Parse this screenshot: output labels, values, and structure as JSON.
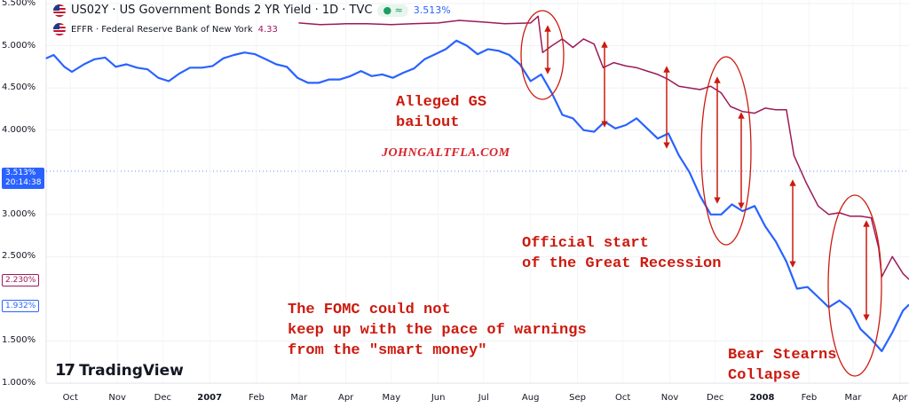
{
  "header": {
    "title": "US02Y · US Government Bonds 2 YR Yield · 1D · TVC",
    "live_value": "3.513%",
    "compare_title": "EFFR · Federal Reserve Bank of New York",
    "compare_value": "4.33"
  },
  "brand": {
    "name": "TradingView"
  },
  "watermark": "JOHNGALTFLA.COM",
  "price_tags": {
    "current_value": "3.513%",
    "current_time": "20:14:38",
    "effr_last": "2.230%",
    "us02y_last": "1.932%"
  },
  "annotations": {
    "gs_bailout": "Alleged GS\nbailout",
    "recession": "Official start\nof the Great Recession",
    "fomc": "The FOMC could not\nkeep up with the pace of warnings\nfrom the \"smart money\"",
    "bear_stearns": "Bear Stearns\nCollapse"
  },
  "colors": {
    "us02y": "#2962ff",
    "effr": "#9b1b5a",
    "annotation": "#cc1a0f"
  },
  "chart_data": {
    "type": "line",
    "title": "US02Y · US Government Bonds 2 YR Yield · 1D · TVC",
    "ylim": [
      1.0,
      5.5
    ],
    "y_ticks": [
      "5.500%",
      "5.000%",
      "4.500%",
      "4.000%",
      "3.000%",
      "2.500%",
      "1.500%",
      "1.000%"
    ],
    "y_tick_values": [
      5.5,
      5.0,
      4.5,
      4.0,
      3.0,
      2.5,
      1.5,
      1.0
    ],
    "x_range": [
      "2006-09-15",
      "2008-04-07"
    ],
    "x_ticks": [
      {
        "label": "Oct",
        "date": "2006-10-01"
      },
      {
        "label": "Nov",
        "date": "2006-11-01"
      },
      {
        "label": "Dec",
        "date": "2006-12-01"
      },
      {
        "label": "2007",
        "date": "2007-01-01"
      },
      {
        "label": "Feb",
        "date": "2007-02-01"
      },
      {
        "label": "Mar",
        "date": "2007-03-01"
      },
      {
        "label": "Apr",
        "date": "2007-04-01"
      },
      {
        "label": "May",
        "date": "2007-05-01"
      },
      {
        "label": "Jun",
        "date": "2007-06-01"
      },
      {
        "label": "Jul",
        "date": "2007-07-01"
      },
      {
        "label": "Aug",
        "date": "2007-08-01"
      },
      {
        "label": "Sep",
        "date": "2007-09-01"
      },
      {
        "label": "Oct",
        "date": "2007-10-01"
      },
      {
        "label": "Nov",
        "date": "2007-11-01"
      },
      {
        "label": "Dec",
        "date": "2007-12-01"
      },
      {
        "label": "2008",
        "date": "2008-01-01"
      },
      {
        "label": "Feb",
        "date": "2008-02-01"
      },
      {
        "label": "Mar",
        "date": "2008-03-01"
      },
      {
        "label": "Apr",
        "date": "2008-04-01"
      }
    ],
    "series": [
      {
        "name": "US02Y",
        "color": "#2962ff",
        "points": [
          [
            "2006-09-15",
            4.85
          ],
          [
            "2006-09-20",
            4.89
          ],
          [
            "2006-09-27",
            4.75
          ],
          [
            "2006-10-02",
            4.69
          ],
          [
            "2006-10-10",
            4.78
          ],
          [
            "2006-10-17",
            4.84
          ],
          [
            "2006-10-24",
            4.86
          ],
          [
            "2006-10-31",
            4.75
          ],
          [
            "2006-11-07",
            4.78
          ],
          [
            "2006-11-14",
            4.74
          ],
          [
            "2006-11-21",
            4.72
          ],
          [
            "2006-11-28",
            4.62
          ],
          [
            "2006-12-05",
            4.58
          ],
          [
            "2006-12-12",
            4.67
          ],
          [
            "2006-12-19",
            4.74
          ],
          [
            "2006-12-27",
            4.74
          ],
          [
            "2007-01-03",
            4.76
          ],
          [
            "2007-01-10",
            4.85
          ],
          [
            "2007-01-17",
            4.89
          ],
          [
            "2007-01-24",
            4.92
          ],
          [
            "2007-01-31",
            4.9
          ],
          [
            "2007-02-07",
            4.84
          ],
          [
            "2007-02-14",
            4.78
          ],
          [
            "2007-02-21",
            4.75
          ],
          [
            "2007-02-28",
            4.62
          ],
          [
            "2007-03-07",
            4.56
          ],
          [
            "2007-03-14",
            4.56
          ],
          [
            "2007-03-21",
            4.6
          ],
          [
            "2007-03-28",
            4.6
          ],
          [
            "2007-04-04",
            4.64
          ],
          [
            "2007-04-11",
            4.7
          ],
          [
            "2007-04-18",
            4.64
          ],
          [
            "2007-04-25",
            4.66
          ],
          [
            "2007-05-02",
            4.62
          ],
          [
            "2007-05-09",
            4.68
          ],
          [
            "2007-05-16",
            4.73
          ],
          [
            "2007-05-23",
            4.84
          ],
          [
            "2007-05-30",
            4.9
          ],
          [
            "2007-06-06",
            4.96
          ],
          [
            "2007-06-13",
            5.06
          ],
          [
            "2007-06-20",
            5.0
          ],
          [
            "2007-06-27",
            4.9
          ],
          [
            "2007-07-04",
            4.96
          ],
          [
            "2007-07-11",
            4.94
          ],
          [
            "2007-07-18",
            4.89
          ],
          [
            "2007-07-25",
            4.78
          ],
          [
            "2007-08-01",
            4.58
          ],
          [
            "2007-08-08",
            4.66
          ],
          [
            "2007-08-15",
            4.44
          ],
          [
            "2007-08-22",
            4.18
          ],
          [
            "2007-08-29",
            4.14
          ],
          [
            "2007-09-05",
            4.0
          ],
          [
            "2007-09-12",
            3.98
          ],
          [
            "2007-09-19",
            4.1
          ],
          [
            "2007-09-26",
            4.02
          ],
          [
            "2007-10-03",
            4.06
          ],
          [
            "2007-10-10",
            4.14
          ],
          [
            "2007-10-17",
            4.02
          ],
          [
            "2007-10-24",
            3.9
          ],
          [
            "2007-10-31",
            3.96
          ],
          [
            "2007-11-07",
            3.7
          ],
          [
            "2007-11-14",
            3.5
          ],
          [
            "2007-11-21",
            3.22
          ],
          [
            "2007-11-28",
            3.0
          ],
          [
            "2007-12-05",
            3.0
          ],
          [
            "2007-12-12",
            3.12
          ],
          [
            "2007-12-19",
            3.04
          ],
          [
            "2007-12-27",
            3.1
          ],
          [
            "2008-01-03",
            2.86
          ],
          [
            "2008-01-10",
            2.68
          ],
          [
            "2008-01-17",
            2.44
          ],
          [
            "2008-01-24",
            2.12
          ],
          [
            "2008-01-31",
            2.14
          ],
          [
            "2008-02-07",
            2.02
          ],
          [
            "2008-02-14",
            1.9
          ],
          [
            "2008-02-21",
            1.98
          ],
          [
            "2008-02-28",
            1.88
          ],
          [
            "2008-03-06",
            1.64
          ],
          [
            "2008-03-13",
            1.52
          ],
          [
            "2008-03-20",
            1.38
          ],
          [
            "2008-03-27",
            1.6
          ],
          [
            "2008-04-03",
            1.86
          ],
          [
            "2008-04-07",
            1.93
          ]
        ]
      },
      {
        "name": "EFFR",
        "color": "#9b1b5a",
        "points": [
          [
            "2007-03-01",
            5.27
          ],
          [
            "2007-03-15",
            5.25
          ],
          [
            "2007-04-01",
            5.26
          ],
          [
            "2007-04-15",
            5.26
          ],
          [
            "2007-05-01",
            5.25
          ],
          [
            "2007-05-15",
            5.26
          ],
          [
            "2007-06-01",
            5.27
          ],
          [
            "2007-06-15",
            5.3
          ],
          [
            "2007-07-01",
            5.28
          ],
          [
            "2007-07-15",
            5.26
          ],
          [
            "2007-08-01",
            5.27
          ],
          [
            "2007-08-06",
            5.35
          ],
          [
            "2007-08-09",
            4.92
          ],
          [
            "2007-08-15",
            5.0
          ],
          [
            "2007-08-22",
            5.08
          ],
          [
            "2007-08-29",
            4.98
          ],
          [
            "2007-09-05",
            5.08
          ],
          [
            "2007-09-12",
            5.02
          ],
          [
            "2007-09-18",
            4.74
          ],
          [
            "2007-09-25",
            4.8
          ],
          [
            "2007-10-03",
            4.76
          ],
          [
            "2007-10-10",
            4.74
          ],
          [
            "2007-10-17",
            4.7
          ],
          [
            "2007-10-24",
            4.66
          ],
          [
            "2007-10-31",
            4.6
          ],
          [
            "2007-11-07",
            4.52
          ],
          [
            "2007-11-14",
            4.5
          ],
          [
            "2007-11-21",
            4.48
          ],
          [
            "2007-11-28",
            4.52
          ],
          [
            "2007-12-05",
            4.44
          ],
          [
            "2007-12-11",
            4.28
          ],
          [
            "2007-12-19",
            4.22
          ],
          [
            "2007-12-27",
            4.2
          ],
          [
            "2008-01-03",
            4.26
          ],
          [
            "2008-01-10",
            4.24
          ],
          [
            "2008-01-17",
            4.24
          ],
          [
            "2008-01-22",
            3.7
          ],
          [
            "2008-01-30",
            3.38
          ],
          [
            "2008-02-07",
            3.1
          ],
          [
            "2008-02-14",
            3.0
          ],
          [
            "2008-02-21",
            3.02
          ],
          [
            "2008-02-28",
            2.98
          ],
          [
            "2008-03-06",
            2.98
          ],
          [
            "2008-03-13",
            2.96
          ],
          [
            "2008-03-18",
            2.6
          ],
          [
            "2008-03-20",
            2.26
          ],
          [
            "2008-03-27",
            2.5
          ],
          [
            "2008-04-03",
            2.3
          ],
          [
            "2008-04-07",
            2.23
          ]
        ]
      }
    ]
  }
}
